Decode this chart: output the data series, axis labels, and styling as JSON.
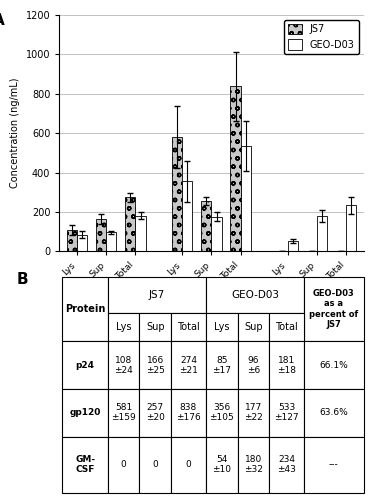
{
  "ylabel": "Concentration (ng/mL)",
  "ylim": [
    0,
    1200
  ],
  "yticks": [
    0,
    200,
    400,
    600,
    800,
    1000,
    1200
  ],
  "groups": [
    "p24",
    "gp120",
    "GM-CSF"
  ],
  "subgroups": [
    "Lys",
    "Sup",
    "Total"
  ],
  "JS7_values": [
    108,
    166,
    274,
    581,
    257,
    838,
    0,
    0,
    0
  ],
  "JS7_errors": [
    24,
    25,
    21,
    159,
    20,
    176,
    0,
    0,
    0
  ],
  "GEO_values": [
    85,
    96,
    181,
    356,
    177,
    533,
    54,
    180,
    234
  ],
  "GEO_errors": [
    17,
    6,
    18,
    105,
    22,
    127,
    10,
    32,
    43
  ],
  "JS7_color": "#c8c8c8",
  "GEO_color": "#ffffff",
  "JS7_hatch": "oo",
  "GEO_hatch": "",
  "legend_JS7": "JS7",
  "legend_GEO": "GEO-D03",
  "table_rows": [
    [
      "p24",
      "108\n±24",
      "166\n±25",
      "274\n±21",
      "85\n±17",
      "96\n±6",
      "181\n±18",
      "66.1%"
    ],
    [
      "gp120",
      "581\n±159",
      "257\n±20",
      "838\n±176",
      "356\n±105",
      "177\n±22",
      "533\n±127",
      "63.6%"
    ],
    [
      "GM-\nCSF",
      "0",
      "0",
      "0",
      "54\n±10",
      "180\n±32",
      "234\n±43",
      "---"
    ]
  ],
  "background_color": "#ffffff",
  "bar_width": 0.35,
  "col_widths": [
    0.13,
    0.09,
    0.09,
    0.1,
    0.09,
    0.09,
    0.1,
    0.17
  ]
}
